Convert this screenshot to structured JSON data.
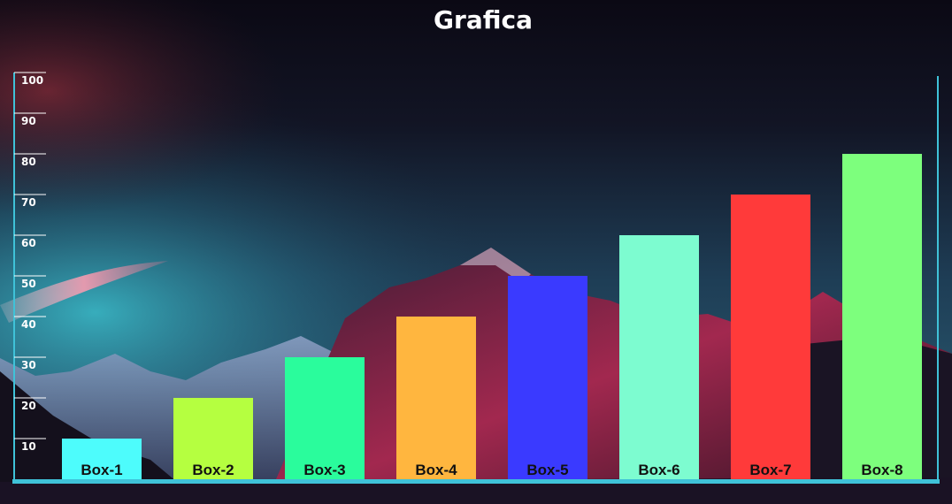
{
  "chart_data": {
    "type": "bar",
    "title": "Grafica",
    "xlabel": "",
    "ylabel": "",
    "ylim": [
      0,
      100
    ],
    "yticks": [
      10,
      20,
      30,
      40,
      50,
      60,
      70,
      80,
      90,
      100
    ],
    "categories": [
      "Box-1",
      "Box-2",
      "Box-3",
      "Box-4",
      "Box-5",
      "Box-6",
      "Box-7",
      "Box-8"
    ],
    "values": [
      10,
      20,
      30,
      40,
      50,
      60,
      70,
      80
    ],
    "bar_colors": [
      "#4dfcfc",
      "#b5ff40",
      "#2afc9c",
      "#ffb63f",
      "#3a3aff",
      "#7dfcd0",
      "#ff3a3a",
      "#7dff7d"
    ],
    "label_color": "#111111",
    "axis_color": "#3fc2d8",
    "grid": false,
    "legend": "none"
  }
}
